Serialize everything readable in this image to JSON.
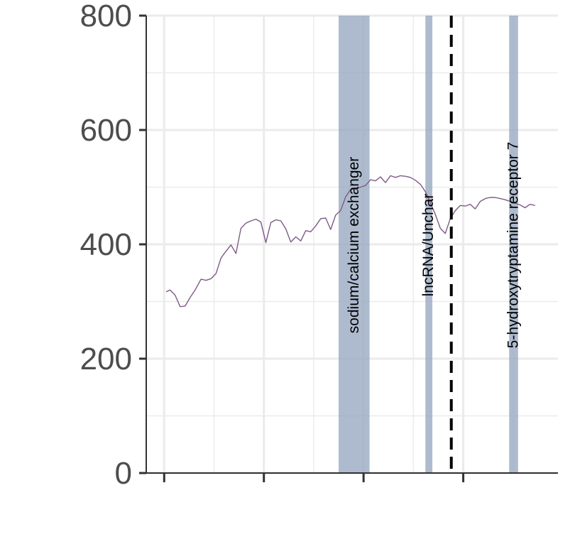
{
  "chart_data": {
    "type": "line",
    "title": "",
    "xlabel": "",
    "ylabel": "",
    "ylim": [
      0,
      800
    ],
    "yticks": [
      0,
      200,
      400,
      600,
      800
    ],
    "xlim": [
      -0.18,
      3.95
    ],
    "xticks": [
      0,
      1,
      2,
      3
    ],
    "grid": true,
    "legend": "none",
    "colors": {
      "line": "#7f5a86",
      "band": "#9aaac3",
      "grid": "#ebebeb",
      "axis": "#333333",
      "vline": "#000000"
    },
    "series": [
      {
        "x": [
          0.02,
          0.06,
          0.11,
          0.16,
          0.21,
          0.26,
          0.31,
          0.37,
          0.42,
          0.47,
          0.52,
          0.57,
          0.62,
          0.67,
          0.72,
          0.77,
          0.82,
          0.87,
          0.92,
          0.97,
          1.02,
          1.07,
          1.12,
          1.17,
          1.22,
          1.27,
          1.32,
          1.37,
          1.42,
          1.47,
          1.52,
          1.57,
          1.62,
          1.67,
          1.72,
          1.77,
          1.82,
          1.87,
          1.92,
          1.97,
          2.02,
          2.07,
          2.12,
          2.17,
          2.22,
          2.27,
          2.32,
          2.37,
          2.42,
          2.47,
          2.52,
          2.57,
          2.62,
          2.67,
          2.72,
          2.77,
          2.82,
          2.87,
          2.92,
          2.97,
          3.02,
          3.07,
          3.12,
          3.17,
          3.22,
          3.27,
          3.32,
          3.37,
          3.42,
          3.47,
          3.52,
          3.57,
          3.62,
          3.67,
          3.72
        ],
        "y": [
          317,
          320,
          311,
          291,
          292,
          307,
          320,
          339,
          337,
          340,
          349,
          376,
          388,
          399,
          384,
          428,
          437,
          441,
          444,
          439,
          403,
          438,
          443,
          441,
          427,
          404,
          413,
          406,
          424,
          422,
          432,
          445,
          446,
          426,
          451,
          459,
          483,
          496,
          497,
          500,
          503,
          513,
          511,
          518,
          508,
          520,
          517,
          520,
          519,
          517,
          512,
          505,
          492,
          473,
          452,
          428,
          419,
          445,
          459,
          468,
          467,
          470,
          462,
          475,
          480,
          482,
          482,
          480,
          478,
          475,
          472,
          469,
          464,
          470,
          468
        ]
      }
    ],
    "bands": [
      {
        "x0": 1.75,
        "x1": 2.06,
        "label": "sodium/calcium exchanger"
      },
      {
        "x0": 2.62,
        "x1": 2.69,
        "label": "lncRNA/Unchar"
      },
      {
        "x0": 3.46,
        "x1": 3.55,
        "label": "5-hydroxytryptamine receptor 7"
      }
    ],
    "vline": {
      "x": 2.88
    }
  }
}
